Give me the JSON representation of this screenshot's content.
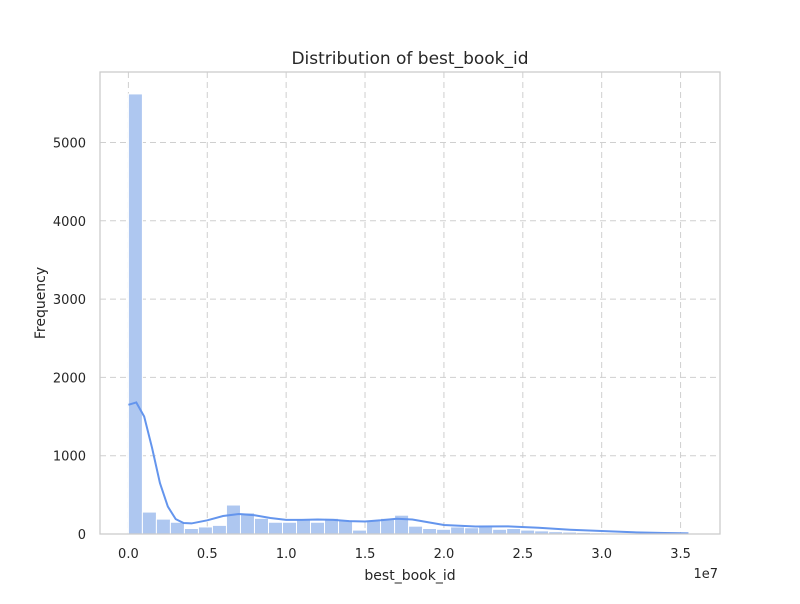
{
  "chart_data": {
    "type": "bar",
    "title": "Distribution of best_book_id",
    "xlabel": "best_book_id",
    "ylabel": "Frequency",
    "x_offset_label": "1e7",
    "xlim": [
      -0.18,
      3.75
    ],
    "ylim": [
      0,
      5900
    ],
    "x_ticks": [
      0.0,
      0.5,
      1.0,
      1.5,
      2.0,
      2.5,
      3.0,
      3.5
    ],
    "x_tick_labels": [
      "0.0",
      "0.5",
      "1.0",
      "1.5",
      "2.0",
      "2.5",
      "3.0",
      "3.5"
    ],
    "y_ticks": [
      0,
      1000,
      2000,
      3000,
      4000,
      5000
    ],
    "y_tick_labels": [
      "0",
      "1000",
      "2000",
      "3000",
      "4000",
      "5000"
    ],
    "grid": true,
    "bin_start": 0.0,
    "bin_width": 0.0888,
    "values": [
      5620,
      280,
      190,
      150,
      70,
      90,
      110,
      370,
      270,
      200,
      150,
      150,
      180,
      150,
      200,
      180,
      50,
      170,
      200,
      240,
      100,
      70,
      60,
      90,
      80,
      90,
      60,
      70,
      50,
      40,
      30,
      25,
      20,
      15,
      10,
      8,
      5,
      5,
      4,
      3
    ],
    "kde": {
      "x": [
        0.0,
        0.05,
        0.1,
        0.15,
        0.2,
        0.25,
        0.3,
        0.35,
        0.4,
        0.5,
        0.6,
        0.7,
        0.8,
        0.9,
        1.0,
        1.1,
        1.2,
        1.3,
        1.4,
        1.5,
        1.6,
        1.7,
        1.8,
        1.9,
        2.0,
        2.2,
        2.4,
        2.6,
        2.8,
        3.0,
        3.2,
        3.4,
        3.55
      ],
      "y": [
        1650,
        1680,
        1500,
        1100,
        650,
        350,
        190,
        140,
        135,
        175,
        230,
        255,
        240,
        205,
        180,
        180,
        185,
        180,
        165,
        160,
        175,
        195,
        185,
        150,
        115,
        95,
        98,
        80,
        55,
        38,
        22,
        12,
        8
      ]
    },
    "colors": {
      "bar": "#aec7f0",
      "kde": "#6495ed",
      "grid": "#cfcfcf",
      "frame": "#cccccc"
    }
  }
}
